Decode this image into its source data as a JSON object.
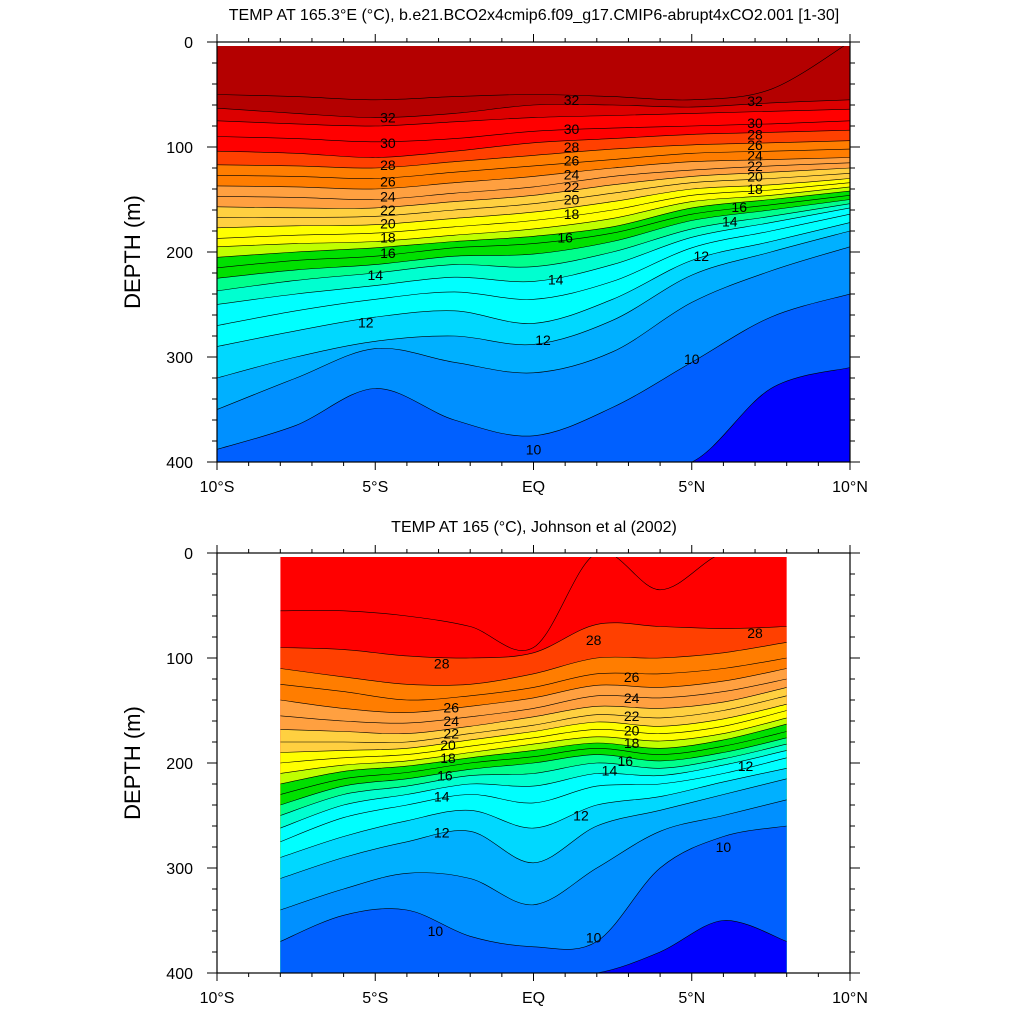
{
  "chart_data": [
    {
      "type": "contour",
      "title": "TEMP AT 165.3°E (°C), b.e21.BCO2x4cmip6.f09_g17.CMIP6-abrupt4xCO2.001 [1-30]",
      "ylabel": "DEPTH (m)",
      "xlabel": "",
      "xlim": [
        -10,
        10
      ],
      "ylim": [
        400,
        0
      ],
      "y_reversed": true,
      "data_xrange": [
        -10,
        10
      ],
      "x_ticks": [
        -10,
        -5,
        0,
        5,
        10
      ],
      "x_tick_labels": [
        "10°S",
        "5°S",
        "EQ",
        "5°N",
        "10°N"
      ],
      "y_ticks": [
        0,
        100,
        200,
        300,
        400
      ],
      "y_tick_labels": [
        "0",
        "100",
        "200",
        "300",
        "400"
      ],
      "contour_levels": [
        33,
        32,
        31,
        30,
        29,
        28,
        27,
        26,
        25,
        24,
        23,
        22,
        21,
        20,
        19,
        18,
        17,
        16,
        15,
        14,
        13,
        12,
        11,
        10,
        9
      ],
      "isotherm_x": [
        -10,
        -7.5,
        -5,
        -2.5,
        0,
        2.5,
        5,
        7.5,
        10
      ],
      "isotherms": [
        {
          "level": 33,
          "depth": [
            50,
            52,
            55,
            52,
            50,
            52,
            55,
            45,
            0
          ]
        },
        {
          "level": 32,
          "depth": [
            63,
            68,
            72,
            68,
            60,
            60,
            62,
            58,
            55
          ]
        },
        {
          "level": 31,
          "depth": [
            75,
            78,
            80,
            76,
            72,
            70,
            68,
            66,
            64
          ]
        },
        {
          "level": 30,
          "depth": [
            90,
            92,
            95,
            92,
            85,
            82,
            80,
            78,
            75
          ]
        },
        {
          "level": 29,
          "depth": [
            104,
            106,
            110,
            104,
            96,
            92,
            88,
            86,
            84
          ]
        },
        {
          "level": 28,
          "depth": [
            117,
            118,
            120,
            114,
            108,
            102,
            98,
            96,
            94
          ]
        },
        {
          "level": 27,
          "depth": [
            127,
            128,
            130,
            124,
            118,
            112,
            106,
            104,
            102
          ]
        },
        {
          "level": 26,
          "depth": [
            137,
            138,
            140,
            134,
            128,
            120,
            114,
            112,
            110
          ]
        },
        {
          "level": 25,
          "depth": [
            147,
            148,
            150,
            144,
            138,
            128,
            122,
            118,
            115
          ]
        },
        {
          "level": 24,
          "depth": [
            157,
            158,
            158,
            152,
            146,
            136,
            128,
            124,
            120
          ]
        },
        {
          "level": 23,
          "depth": [
            167,
            167,
            166,
            160,
            154,
            144,
            134,
            130,
            125
          ]
        },
        {
          "level": 22,
          "depth": [
            177,
            175,
            174,
            168,
            162,
            152,
            140,
            136,
            130
          ]
        },
        {
          "level": 21,
          "depth": [
            187,
            184,
            182,
            176,
            170,
            160,
            146,
            141,
            134
          ]
        },
        {
          "level": 20,
          "depth": [
            195,
            192,
            190,
            184,
            178,
            168,
            152,
            146,
            138
          ]
        },
        {
          "level": 19,
          "depth": [
            205,
            200,
            196,
            190,
            185,
            176,
            158,
            150,
            142
          ]
        },
        {
          "level": 18,
          "depth": [
            215,
            208,
            204,
            196,
            192,
            182,
            164,
            155,
            146
          ]
        },
        {
          "level": 17,
          "depth": [
            225,
            217,
            212,
            204,
            202,
            190,
            170,
            160,
            150
          ]
        },
        {
          "level": 16,
          "depth": [
            237,
            227,
            220,
            212,
            214,
            200,
            178,
            166,
            154
          ]
        },
        {
          "level": 15,
          "depth": [
            250,
            240,
            232,
            224,
            228,
            212,
            186,
            172,
            158
          ]
        },
        {
          "level": 14,
          "depth": [
            270,
            256,
            245,
            238,
            245,
            228,
            196,
            180,
            164
          ]
        },
        {
          "level": 13,
          "depth": [
            290,
            275,
            262,
            256,
            268,
            245,
            208,
            190,
            172
          ]
        },
        {
          "level": 12,
          "depth": [
            320,
            300,
            285,
            280,
            288,
            265,
            222,
            200,
            180
          ]
        },
        {
          "level": 11,
          "depth": [
            350,
            320,
            292,
            305,
            315,
            295,
            248,
            218,
            195
          ]
        },
        {
          "level": 10,
          "depth": [
            388,
            365,
            330,
            360,
            375,
            348,
            305,
            262,
            240
          ]
        },
        {
          "level": 9,
          "depth": [
            425,
            420,
            415,
            410,
            418,
            420,
            400,
            330,
            310
          ]
        }
      ],
      "labels": [
        {
          "text": "32",
          "x": -4.6,
          "y": 72
        },
        {
          "text": "32",
          "x": 1.2,
          "y": 55
        },
        {
          "text": "32",
          "x": 7.0,
          "y": 56
        },
        {
          "text": "30",
          "x": -4.6,
          "y": 96
        },
        {
          "text": "30",
          "x": 1.2,
          "y": 83
        },
        {
          "text": "30",
          "x": 7.0,
          "y": 77
        },
        {
          "text": "28",
          "x": -4.6,
          "y": 117
        },
        {
          "text": "28",
          "x": 1.2,
          "y": 100
        },
        {
          "text": "28",
          "x": 7.0,
          "y": 88
        },
        {
          "text": "26",
          "x": -4.6,
          "y": 133
        },
        {
          "text": "26",
          "x": 1.2,
          "y": 113
        },
        {
          "text": "26",
          "x": 7.0,
          "y": 98
        },
        {
          "text": "24",
          "x": -4.6,
          "y": 147
        },
        {
          "text": "24",
          "x": 1.2,
          "y": 126
        },
        {
          "text": "24",
          "x": 7.0,
          "y": 108
        },
        {
          "text": "22",
          "x": -4.6,
          "y": 160
        },
        {
          "text": "22",
          "x": 1.2,
          "y": 138
        },
        {
          "text": "22",
          "x": 7.0,
          "y": 118
        },
        {
          "text": "20",
          "x": -4.6,
          "y": 173
        },
        {
          "text": "20",
          "x": 1.2,
          "y": 150
        },
        {
          "text": "20",
          "x": 7.0,
          "y": 128
        },
        {
          "text": "18",
          "x": -4.6,
          "y": 186
        },
        {
          "text": "18",
          "x": 1.2,
          "y": 164
        },
        {
          "text": "18",
          "x": 7.0,
          "y": 140
        },
        {
          "text": "16",
          "x": -4.6,
          "y": 201
        },
        {
          "text": "16",
          "x": 1.0,
          "y": 186
        },
        {
          "text": "16",
          "x": 6.5,
          "y": 157
        },
        {
          "text": "14",
          "x": -5.0,
          "y": 222
        },
        {
          "text": "14",
          "x": 0.7,
          "y": 226
        },
        {
          "text": "14",
          "x": 6.2,
          "y": 171
        },
        {
          "text": "12",
          "x": -5.3,
          "y": 267
        },
        {
          "text": "12",
          "x": 0.3,
          "y": 284
        },
        {
          "text": "12",
          "x": 5.3,
          "y": 204
        },
        {
          "text": "10",
          "x": 5.0,
          "y": 302
        },
        {
          "text": "10",
          "x": 0.0,
          "y": 388
        }
      ]
    },
    {
      "type": "contour",
      "title": "TEMP AT 165 (°C), Johnson et al (2002)",
      "ylabel": "DEPTH (m)",
      "xlabel": "",
      "xlim": [
        -10,
        10
      ],
      "ylim": [
        400,
        0
      ],
      "y_reversed": true,
      "data_xrange": [
        -8,
        8
      ],
      "x_ticks": [
        -10,
        -5,
        0,
        5,
        10
      ],
      "x_tick_labels": [
        "10°S",
        "5°S",
        "EQ",
        "5°N",
        "10°N"
      ],
      "y_ticks": [
        0,
        100,
        200,
        300,
        400
      ],
      "y_tick_labels": [
        "0",
        "100",
        "200",
        "300",
        "400"
      ],
      "contour_levels": [
        30,
        29,
        28,
        27,
        26,
        25,
        24,
        23,
        22,
        21,
        20,
        19,
        18,
        17,
        16,
        15,
        14,
        13,
        12,
        11,
        10,
        9
      ],
      "isotherm_x": [
        -8,
        -6,
        -4,
        -2,
        0,
        2,
        4,
        6,
        8
      ],
      "isotherms": [
        {
          "level": 30,
          "depth": [
            55,
            55,
            60,
            70,
            90,
            0,
            35,
            0,
            0
          ]
        },
        {
          "level": 29,
          "depth": [
            90,
            92,
            98,
            100,
            95,
            68,
            70,
            72,
            70
          ]
        },
        {
          "level": 28,
          "depth": [
            110,
            118,
            125,
            125,
            115,
            100,
            100,
            95,
            85
          ]
        },
        {
          "level": 27,
          "depth": [
            125,
            132,
            140,
            136,
            128,
            115,
            115,
            110,
            100
          ]
        },
        {
          "level": 26,
          "depth": [
            140,
            148,
            152,
            146,
            138,
            126,
            128,
            122,
            110
          ]
        },
        {
          "level": 25,
          "depth": [
            155,
            160,
            162,
            156,
            148,
            136,
            138,
            132,
            120
          ]
        },
        {
          "level": 24,
          "depth": [
            168,
            170,
            172,
            165,
            156,
            146,
            148,
            142,
            128
          ]
        },
        {
          "level": 23,
          "depth": [
            180,
            180,
            180,
            172,
            164,
            154,
            157,
            150,
            136
          ]
        },
        {
          "level": 22,
          "depth": [
            190,
            188,
            186,
            178,
            170,
            161,
            165,
            158,
            144
          ]
        },
        {
          "level": 21,
          "depth": [
            200,
            195,
            192,
            184,
            176,
            168,
            172,
            165,
            150
          ]
        },
        {
          "level": 20,
          "depth": [
            210,
            202,
            198,
            190,
            182,
            175,
            179,
            172,
            157
          ]
        },
        {
          "level": 19,
          "depth": [
            220,
            208,
            203,
            195,
            188,
            181,
            186,
            178,
            163
          ]
        },
        {
          "level": 18,
          "depth": [
            230,
            215,
            209,
            200,
            194,
            186,
            192,
            184,
            170
          ]
        },
        {
          "level": 17,
          "depth": [
            240,
            222,
            215,
            206,
            200,
            192,
            198,
            190,
            176
          ]
        },
        {
          "level": 16,
          "depth": [
            250,
            230,
            222,
            212,
            210,
            200,
            205,
            196,
            182
          ]
        },
        {
          "level": 15,
          "depth": [
            262,
            240,
            230,
            220,
            222,
            210,
            212,
            202,
            188
          ]
        },
        {
          "level": 14,
          "depth": [
            275,
            252,
            240,
            230,
            238,
            222,
            220,
            210,
            195
          ]
        },
        {
          "level": 13,
          "depth": [
            290,
            270,
            255,
            245,
            262,
            240,
            232,
            218,
            205
          ]
        },
        {
          "level": 12,
          "depth": [
            310,
            290,
            275,
            265,
            295,
            260,
            245,
            230,
            215
          ]
        },
        {
          "level": 11,
          "depth": [
            340,
            320,
            305,
            310,
            335,
            300,
            265,
            250,
            235
          ]
        },
        {
          "level": 10,
          "depth": [
            370,
            345,
            340,
            365,
            375,
            370,
            300,
            270,
            260
          ]
        },
        {
          "level": 9,
          "depth": [
            410,
            410,
            410,
            410,
            410,
            410,
            380,
            350,
            370
          ]
        }
      ],
      "labels": [
        {
          "text": "28",
          "x": -2.9,
          "y": 105
        },
        {
          "text": "28",
          "x": 1.9,
          "y": 83
        },
        {
          "text": "28",
          "x": 7.0,
          "y": 76
        },
        {
          "text": "26",
          "x": -2.6,
          "y": 147
        },
        {
          "text": "26",
          "x": 3.1,
          "y": 118
        },
        {
          "text": "24",
          "x": -2.6,
          "y": 160
        },
        {
          "text": "24",
          "x": 3.1,
          "y": 138
        },
        {
          "text": "22",
          "x": -2.6,
          "y": 172
        },
        {
          "text": "22",
          "x": 3.1,
          "y": 155
        },
        {
          "text": "20",
          "x": -2.7,
          "y": 183
        },
        {
          "text": "20",
          "x": 3.1,
          "y": 169
        },
        {
          "text": "18",
          "x": -2.7,
          "y": 195
        },
        {
          "text": "18",
          "x": 3.1,
          "y": 181
        },
        {
          "text": "16",
          "x": -2.8,
          "y": 212
        },
        {
          "text": "16",
          "x": 2.9,
          "y": 198
        },
        {
          "text": "14",
          "x": -2.9,
          "y": 232
        },
        {
          "text": "14",
          "x": 2.4,
          "y": 207
        },
        {
          "text": "12",
          "x": -2.9,
          "y": 266
        },
        {
          "text": "12",
          "x": 1.5,
          "y": 250
        },
        {
          "text": "12",
          "x": 6.7,
          "y": 203
        },
        {
          "text": "10",
          "x": -3.1,
          "y": 360
        },
        {
          "text": "10",
          "x": 1.9,
          "y": 366
        },
        {
          "text": "10",
          "x": 6.0,
          "y": 280
        }
      ]
    }
  ]
}
